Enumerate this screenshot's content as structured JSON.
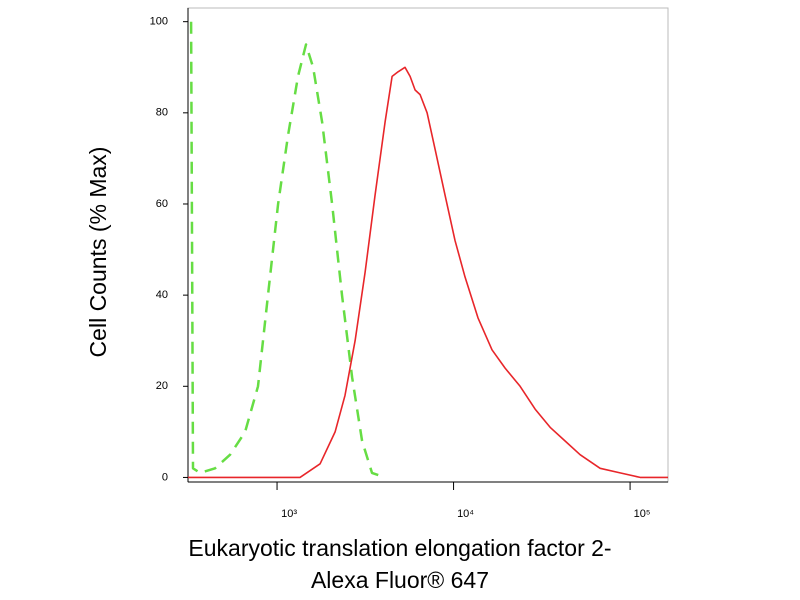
{
  "chart_data": {
    "type": "line",
    "ylabel": "Cell Counts (% Max)",
    "xlabel": [
      "Eukaryotic translation elongation factor 2-",
      "Alexa Fluor® 647"
    ],
    "xscale": "log",
    "xlim": [
      313,
      164000
    ],
    "ylim": [
      -1,
      103
    ],
    "xticks": [
      {
        "value": 1000,
        "label": "10³"
      },
      {
        "value": 10000,
        "label": "10⁴"
      },
      {
        "value": 100000,
        "label": "10⁵"
      }
    ],
    "yticks": [
      0,
      20,
      40,
      60,
      80,
      100
    ],
    "series": [
      {
        "color": "#66dd44",
        "style": "dashed",
        "x": [
          326,
          334,
          366,
          446,
          542,
          659,
          780,
          889,
          1014,
          1154,
          1315,
          1459,
          1600,
          1799,
          2051,
          2334,
          2661,
          3033,
          3451,
          4093
        ],
        "values": [
          100,
          2,
          1,
          2,
          5,
          10,
          20,
          40,
          60,
          75,
          88,
          95,
          90,
          78,
          60,
          40,
          22,
          8,
          1,
          0
        ]
      },
      {
        "color": "#e8262a",
        "style": "solid",
        "x": [
          313,
          1349,
          1753,
          2132,
          2427,
          2767,
          3153,
          3592,
          4093,
          4484,
          4851,
          5311,
          5670,
          6053,
          6463,
          7077,
          7855,
          8947,
          10190,
          11610,
          13760,
          16520,
          19580,
          23820,
          28960,
          35230,
          42840,
          52100,
          67610,
          87770,
          114000,
          164000
        ],
        "values": [
          0,
          0,
          3,
          10,
          18,
          30,
          45,
          62,
          78,
          88,
          89,
          90,
          88,
          85,
          84,
          80,
          72,
          62,
          52,
          44,
          35,
          28,
          24,
          20,
          15,
          11,
          8,
          5,
          2,
          1,
          0,
          0
        ]
      }
    ]
  }
}
